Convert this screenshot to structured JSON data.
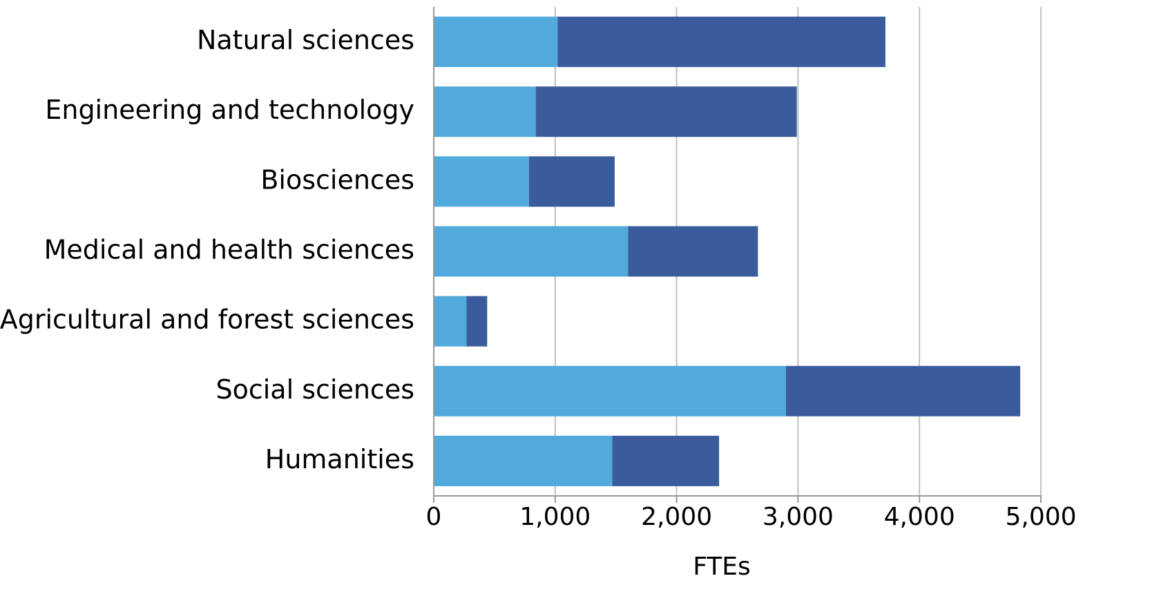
{
  "chart_data": {
    "type": "stacked_barh",
    "categories": [
      "Natural sciences",
      "Engineering and technology",
      "Biosciences",
      "Medical and health sciences",
      "Agricultural and forest sciences",
      "Social sciences",
      "Humanities"
    ],
    "series": [
      {
        "color": "#52aadc",
        "values": [
          1020,
          840,
          785,
          1600,
          270,
          2900,
          1470
        ]
      },
      {
        "color": "#3b5c9c",
        "values": [
          2700,
          2150,
          705,
          1070,
          170,
          1930,
          880
        ]
      }
    ],
    "xlabel": "FTEs",
    "xlim": [
      0,
      5000
    ],
    "xticks": [
      0,
      {
        "value": 1000,
        "label": "1,000"
      },
      {
        "value": 2000,
        "label": "2,000"
      },
      {
        "value": 3000,
        "label": "3,000"
      },
      {
        "value": 4000,
        "label": "4,000"
      },
      {
        "value": 5000,
        "label": "5,000"
      }
    ],
    "grid": true
  }
}
